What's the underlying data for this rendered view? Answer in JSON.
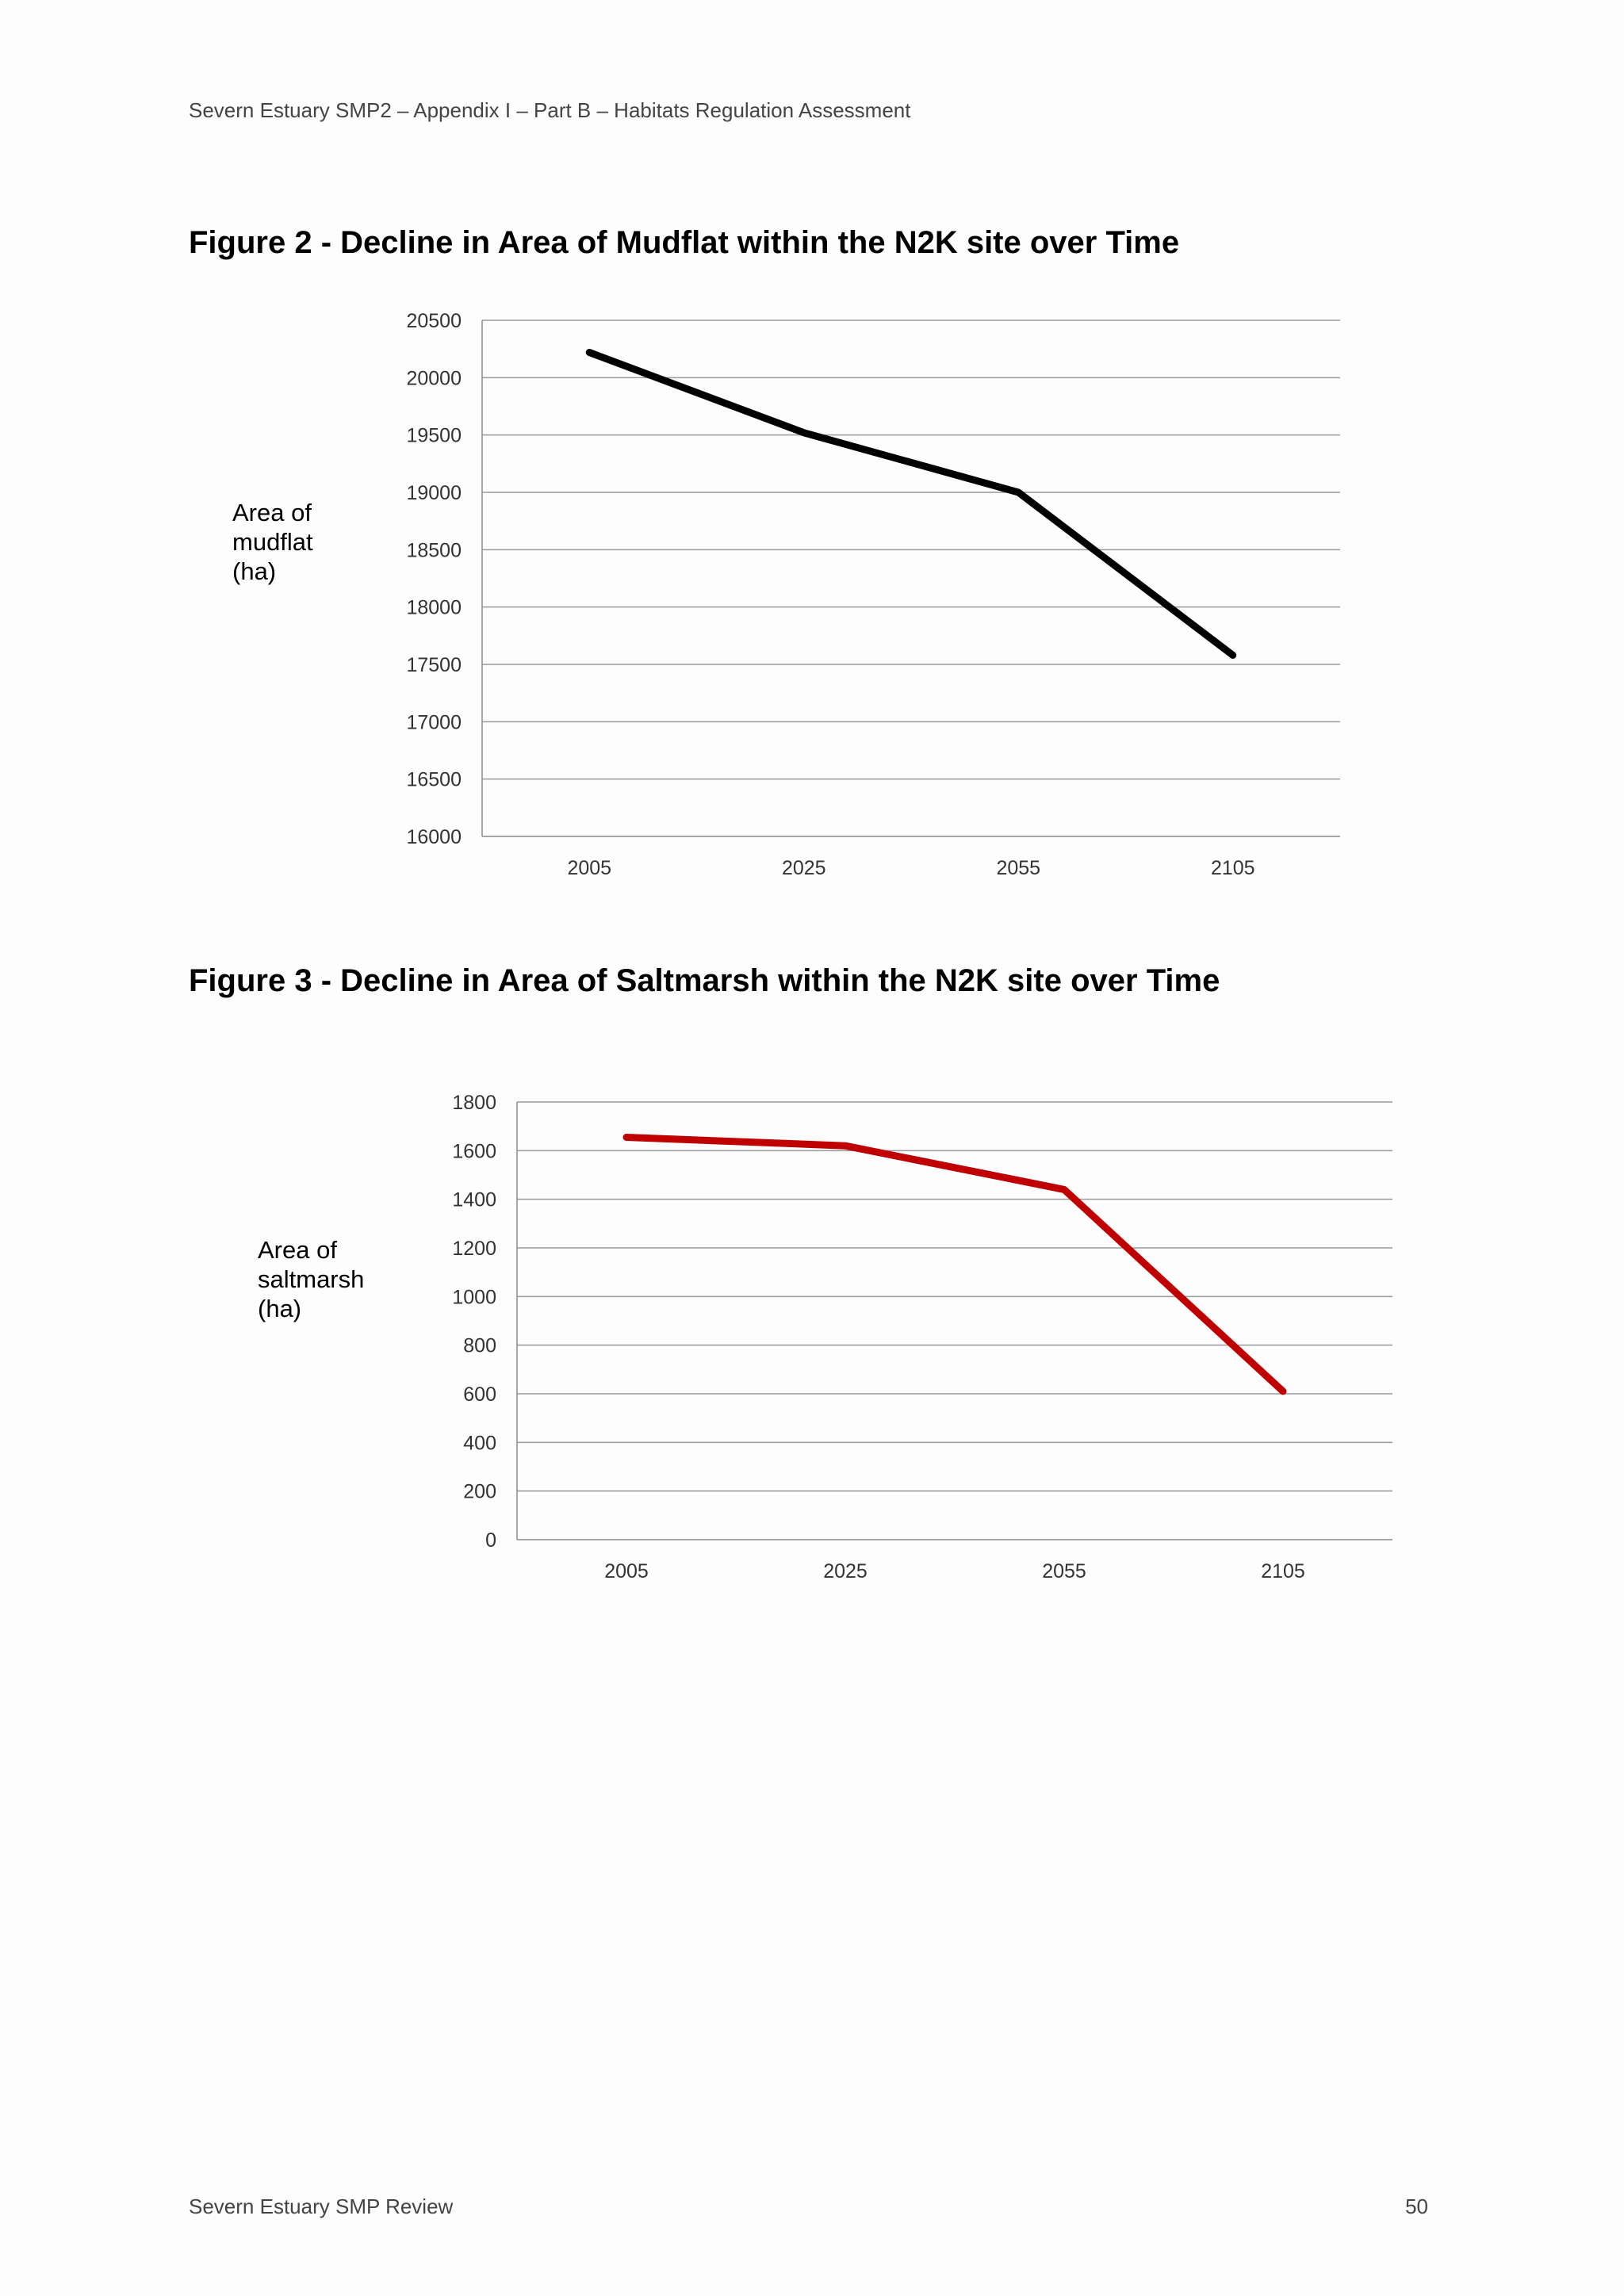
{
  "header": {
    "text": "Severn Estuary SMP2 – Appendix I – Part B – Habitats Regulation Assessment"
  },
  "figures": {
    "fig2": {
      "title": "Figure 2 - Decline in Area of Mudflat within the N2K site over Time",
      "ylabel": [
        "Area of",
        "mudflat",
        "(ha)"
      ]
    },
    "fig3": {
      "title": "Figure 3 - Decline in Area of Saltmarsh within the N2K site over Time",
      "ylabel": [
        "Area of",
        "saltmarsh",
        "(ha)"
      ]
    }
  },
  "chart_data": [
    {
      "type": "line",
      "categories": [
        "2005",
        "2025",
        "2055",
        "2105"
      ],
      "series": [
        {
          "values": [
            20220,
            19520,
            19000,
            17580
          ],
          "color": "#000000"
        }
      ],
      "ylim": [
        16000,
        20500
      ],
      "yticks": [
        16000,
        16500,
        17000,
        17500,
        18000,
        18500,
        19000,
        19500,
        20000,
        20500
      ],
      "ylabel": "Area of mudflat (ha)",
      "grid": true
    },
    {
      "type": "line",
      "categories": [
        "2005",
        "2025",
        "2055",
        "2105"
      ],
      "series": [
        {
          "values": [
            1655,
            1620,
            1440,
            610
          ],
          "color": "#c00000"
        }
      ],
      "ylim": [
        0,
        1800
      ],
      "yticks": [
        0,
        200,
        400,
        600,
        800,
        1000,
        1200,
        1400,
        1600,
        1800
      ],
      "ylabel": "Area of saltmarsh (ha)",
      "grid": true
    }
  ],
  "footer": {
    "left": "Severn Estuary SMP Review",
    "page": "50"
  }
}
